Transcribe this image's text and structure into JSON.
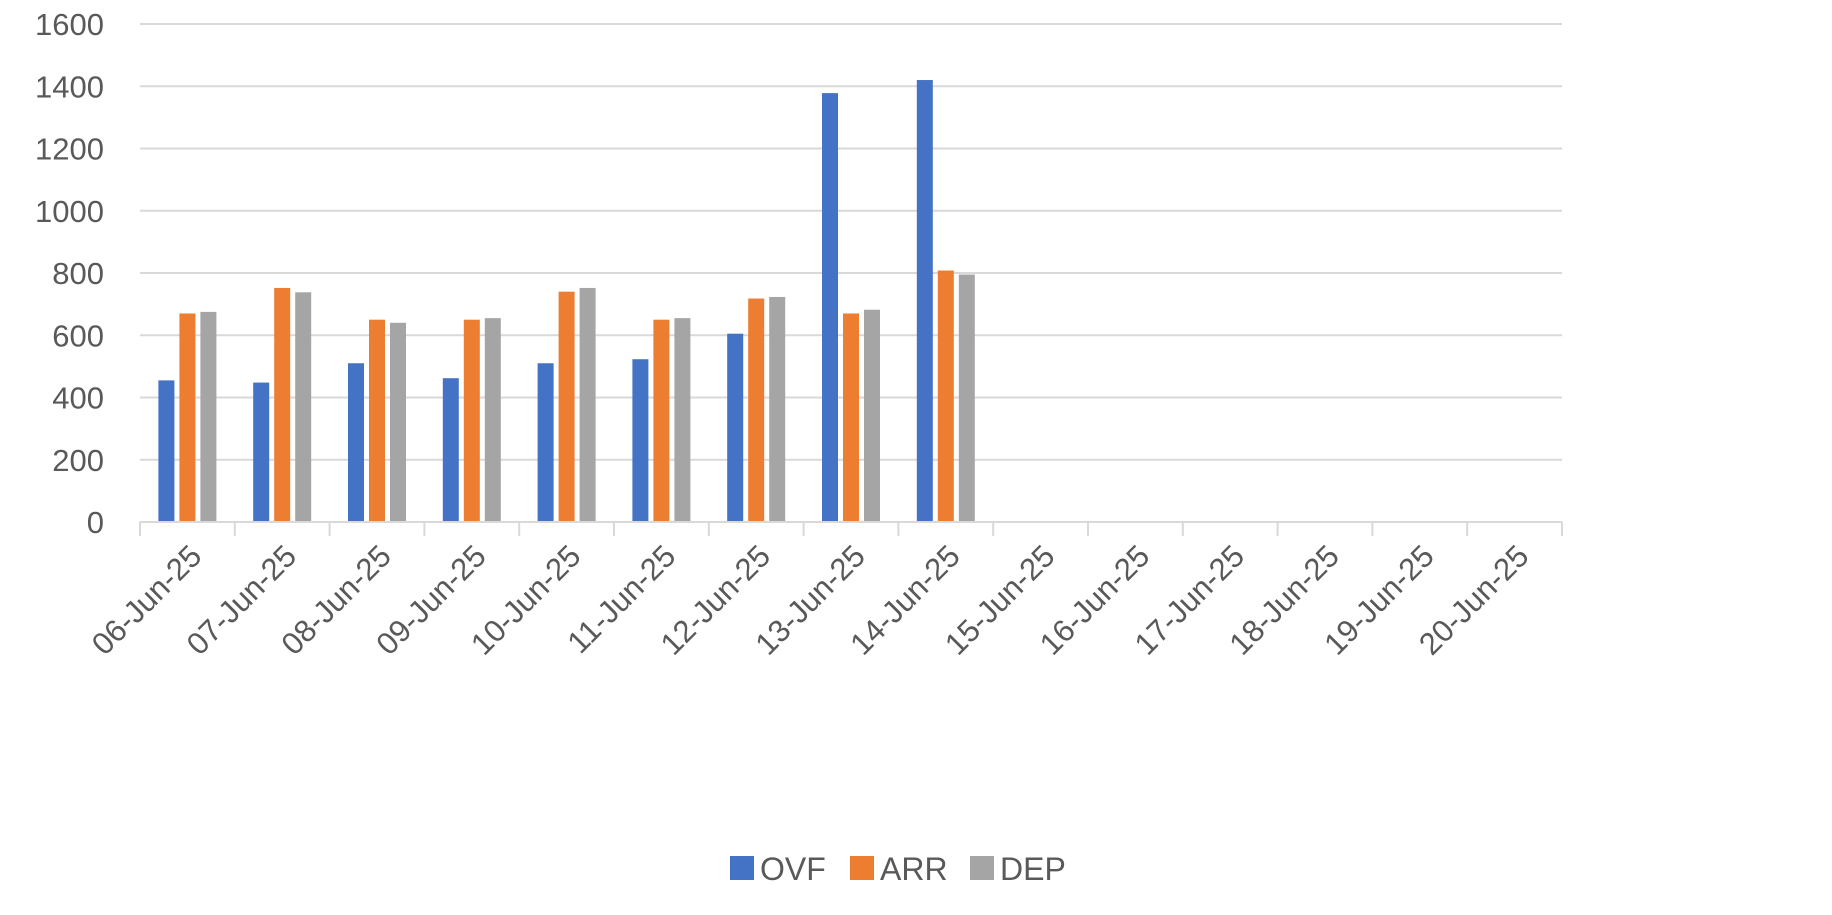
{
  "chart_data": {
    "type": "bar",
    "title": "",
    "xlabel": "",
    "ylabel": "",
    "ylim": [
      0,
      1600
    ],
    "yticks": [
      0,
      200,
      400,
      600,
      800,
      1000,
      1200,
      1400,
      1600
    ],
    "grid": true,
    "legend_position": "bottom",
    "categories": [
      "06-Jun-25",
      "07-Jun-25",
      "08-Jun-25",
      "09-Jun-25",
      "10-Jun-25",
      "11-Jun-25",
      "12-Jun-25",
      "13-Jun-25",
      "14-Jun-25",
      "15-Jun-25",
      "16-Jun-25",
      "17-Jun-25",
      "18-Jun-25",
      "19-Jun-25",
      "20-Jun-25"
    ],
    "series": [
      {
        "name": "OVF",
        "color": "#4472C4",
        "values": [
          455,
          448,
          510,
          462,
          510,
          523,
          605,
          1378,
          1420,
          null,
          null,
          null,
          null,
          null,
          null
        ]
      },
      {
        "name": "ARR",
        "color": "#ED7D31",
        "values": [
          670,
          752,
          650,
          650,
          740,
          650,
          718,
          670,
          808,
          null,
          null,
          null,
          null,
          null,
          null
        ]
      },
      {
        "name": "DEP",
        "color": "#A5A5A5",
        "values": [
          675,
          738,
          640,
          655,
          752,
          655,
          723,
          682,
          795,
          null,
          null,
          null,
          null,
          null,
          null
        ]
      }
    ]
  }
}
